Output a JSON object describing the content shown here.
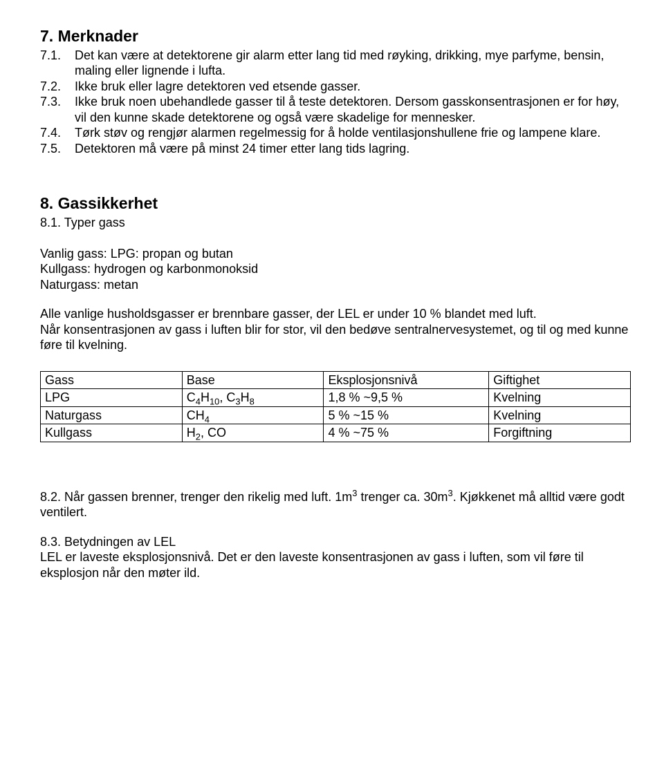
{
  "section7": {
    "title": "7. Merknader",
    "items": [
      {
        "num": "7.1.",
        "text": "Det kan være at detektorene gir alarm etter lang tid med røyking, drikking, mye parfyme, bensin, maling eller lignende i lufta."
      },
      {
        "num": "7.2.",
        "text": "Ikke bruk eller lagre detektoren ved etsende gasser."
      },
      {
        "num": "7.3.",
        "text": "Ikke bruk noen ubehandlede gasser til å teste detektoren. Dersom gasskonsentrasjonen er for høy, vil den kunne skade detektorene og også være skadelige for mennesker."
      },
      {
        "num": "7.4.",
        "text": "Tørk støv og rengjør alarmen regelmessig for å holde ventilasjonshullene frie og lampene klare."
      },
      {
        "num": "7.5.",
        "text": "Detektoren må være på minst 24 timer etter lang tids lagring."
      }
    ]
  },
  "section8": {
    "title": "8. Gassikkerhet",
    "sub1": "8.1. Typer gass",
    "gas_lines": [
      "Vanlig gass: LPG: propan og butan",
      "Kullgass: hydrogen og karbonmonoksid",
      "Naturgass: metan"
    ],
    "para1": "Alle vanlige husholdsgasser er brennbare gasser, der LEL er under 10 % blandet med luft.",
    "para2": "Når konsentrasjonen av gass i luften blir for stor, vil den bedøve sentralnervesystemet, og til og med kunne føre til kvelning.",
    "table": {
      "headers": [
        "Gass",
        "Base",
        "Eksplosjonsnivå",
        "Giftighet"
      ],
      "rows_plain": [
        [
          "LPG",
          "C4H10, C3H8",
          "1,8 % ~9,5 %",
          "Kvelning"
        ],
        [
          "Naturgass",
          "CH4",
          "5 % ~15 %",
          "Kvelning"
        ],
        [
          "Kullgass",
          "H2, CO",
          "4 % ~75 %",
          "Forgiftning"
        ]
      ],
      "rows_html_base": [
        "C<sub>4</sub>H<sub>10</sub>, C<sub>3</sub>H<sub>8</sub>",
        "CH<sub>4</sub>",
        "H<sub>2</sub>, CO"
      ]
    },
    "para3_html": "8.2. Når gassen brenner, trenger den rikelig med luft. 1m<sup>3</sup> trenger ca. 30m<sup>3</sup>. Kjøkkenet må alltid være godt ventilert.",
    "para3_plain": "8.2. Når gassen brenner, trenger den rikelig med luft. 1m3 trenger ca. 30m3. Kjøkkenet må alltid være godt ventilert.",
    "sub3": "8.3. Betydningen av LEL",
    "para4": "LEL er laveste eksplosjonsnivå. Det er den laveste konsentrasjonen av gass i luften, som vil føre til eksplosjon når den møter ild."
  }
}
